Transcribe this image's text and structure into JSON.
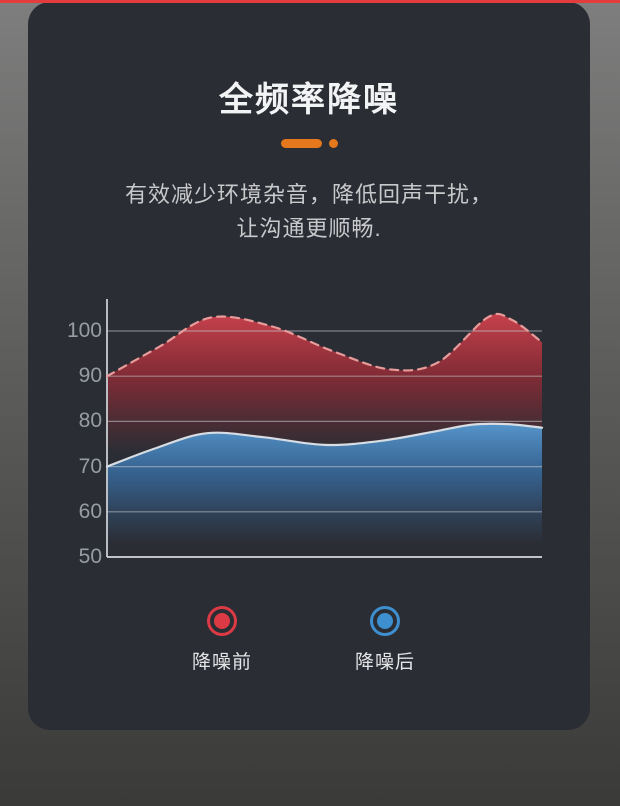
{
  "section": {
    "title": "全频率降噪",
    "subtitle_line1": "有效减少环境杂音，降低回声干扰，",
    "subtitle_line2": "让沟通更顺畅.",
    "accent_color": "#e5771c",
    "top_line_color": "#e23c3c",
    "card_color": "#2b2d34"
  },
  "chart_data": {
    "type": "area",
    "title": "",
    "xlabel": "",
    "ylabel": "",
    "yticks": [
      "100",
      "90",
      "80",
      "70",
      "60",
      "50"
    ],
    "ylim": [
      50,
      107
    ],
    "grid": true,
    "legend_position": "bottom",
    "axis_color": "#c9cdd2",
    "grid_color": "#c6cacf",
    "series": [
      {
        "name": "降噪前",
        "line_style": "dashed",
        "stroke_color": "#e79b9b",
        "fill_top_color": "#c9404c",
        "fill_mid_color": "#8f2c36",
        "fade_to": 73,
        "points": [
          [
            0,
            90
          ],
          [
            0.12,
            96.5
          ],
          [
            0.24,
            103
          ],
          [
            0.38,
            101
          ],
          [
            0.52,
            95.5
          ],
          [
            0.65,
            91.5
          ],
          [
            0.76,
            93
          ],
          [
            0.875,
            103
          ],
          [
            0.93,
            102.5
          ],
          [
            1,
            97.5
          ]
        ]
      },
      {
        "name": "降噪后",
        "line_style": "solid",
        "stroke_color": "#d7dde3",
        "fill_top_color": "#5598d0",
        "fill_mid_color": "#37689a",
        "fade_to": 53,
        "points": [
          [
            0,
            70
          ],
          [
            0.11,
            74
          ],
          [
            0.23,
            77.4
          ],
          [
            0.36,
            76.5
          ],
          [
            0.5,
            74.8
          ],
          [
            0.63,
            75.7
          ],
          [
            0.76,
            77.9
          ],
          [
            0.84,
            79.3
          ],
          [
            0.92,
            79.4
          ],
          [
            1,
            78.6
          ]
        ]
      }
    ]
  },
  "legend": {
    "items": [
      {
        "label": "降噪前",
        "color": "#dc3a44"
      },
      {
        "label": "降噪后",
        "color": "#3d8fd0"
      }
    ]
  }
}
